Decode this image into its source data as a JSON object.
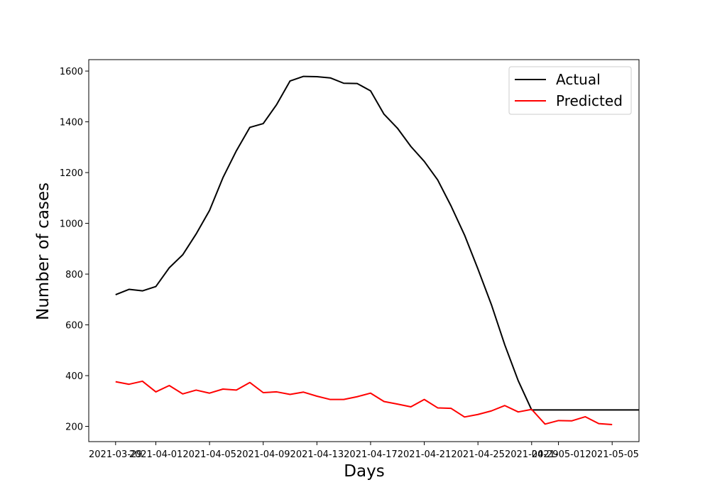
{
  "chart_data": {
    "type": "line",
    "title": "",
    "xlabel": "Days",
    "ylabel": "Number of cases",
    "x": [
      "2021-03-29",
      "2021-03-30",
      "2021-03-31",
      "2021-04-01",
      "2021-04-02",
      "2021-04-03",
      "2021-04-04",
      "2021-04-05",
      "2021-04-06",
      "2021-04-07",
      "2021-04-08",
      "2021-04-09",
      "2021-04-10",
      "2021-04-11",
      "2021-04-12",
      "2021-04-13",
      "2021-04-14",
      "2021-04-15",
      "2021-04-16",
      "2021-04-17",
      "2021-04-18",
      "2021-04-19",
      "2021-04-20",
      "2021-04-21",
      "2021-04-22",
      "2021-04-23",
      "2021-04-24",
      "2021-04-25",
      "2021-04-26",
      "2021-04-27",
      "2021-04-28",
      "2021-04-29",
      "2021-04-30",
      "2021-05-01",
      "2021-05-02",
      "2021-05-03",
      "2021-05-04",
      "2021-05-05",
      "2021-05-06",
      "2021-05-07"
    ],
    "xticks": [
      "2021-03-29",
      "2021-04-01",
      "2021-04-05",
      "2021-04-09",
      "2021-04-13",
      "2021-04-17",
      "2021-04-21",
      "2021-04-25",
      "2021-04-29",
      "2021-05-01",
      "2021-05-05"
    ],
    "xlim": [
      "2021-03-27",
      "2021-05-07"
    ],
    "yticks": [
      200,
      400,
      600,
      800,
      1000,
      1200,
      1400,
      1600
    ],
    "ylim": [
      140,
      1645
    ],
    "grid": false,
    "legend_position": "top-right",
    "series": [
      {
        "name": "Actual",
        "color": "#000000",
        "values": [
          719,
          740,
          734,
          751,
          825,
          876,
          958,
          1051,
          1180,
          1286,
          1378,
          1393,
          1468,
          1561,
          1579,
          1578,
          1573,
          1552,
          1551,
          1522,
          1430,
          1375,
          1303,
          1244,
          1171,
          1068,
          954,
          820,
          680,
          521,
          380,
          265,
          265,
          265,
          265,
          265,
          265,
          265,
          265,
          265
        ]
      },
      {
        "name": "Predicted",
        "color": "#ff0000",
        "values": [
          376,
          366,
          378,
          336,
          361,
          328,
          343,
          331,
          347,
          343,
          373,
          333,
          336,
          326,
          335,
          319,
          306,
          306,
          317,
          331,
          298,
          288,
          277,
          306,
          273,
          271,
          237,
          247,
          261,
          282,
          257,
          267,
          209,
          223,
          222,
          238,
          211,
          207,
          null,
          null
        ]
      }
    ]
  }
}
